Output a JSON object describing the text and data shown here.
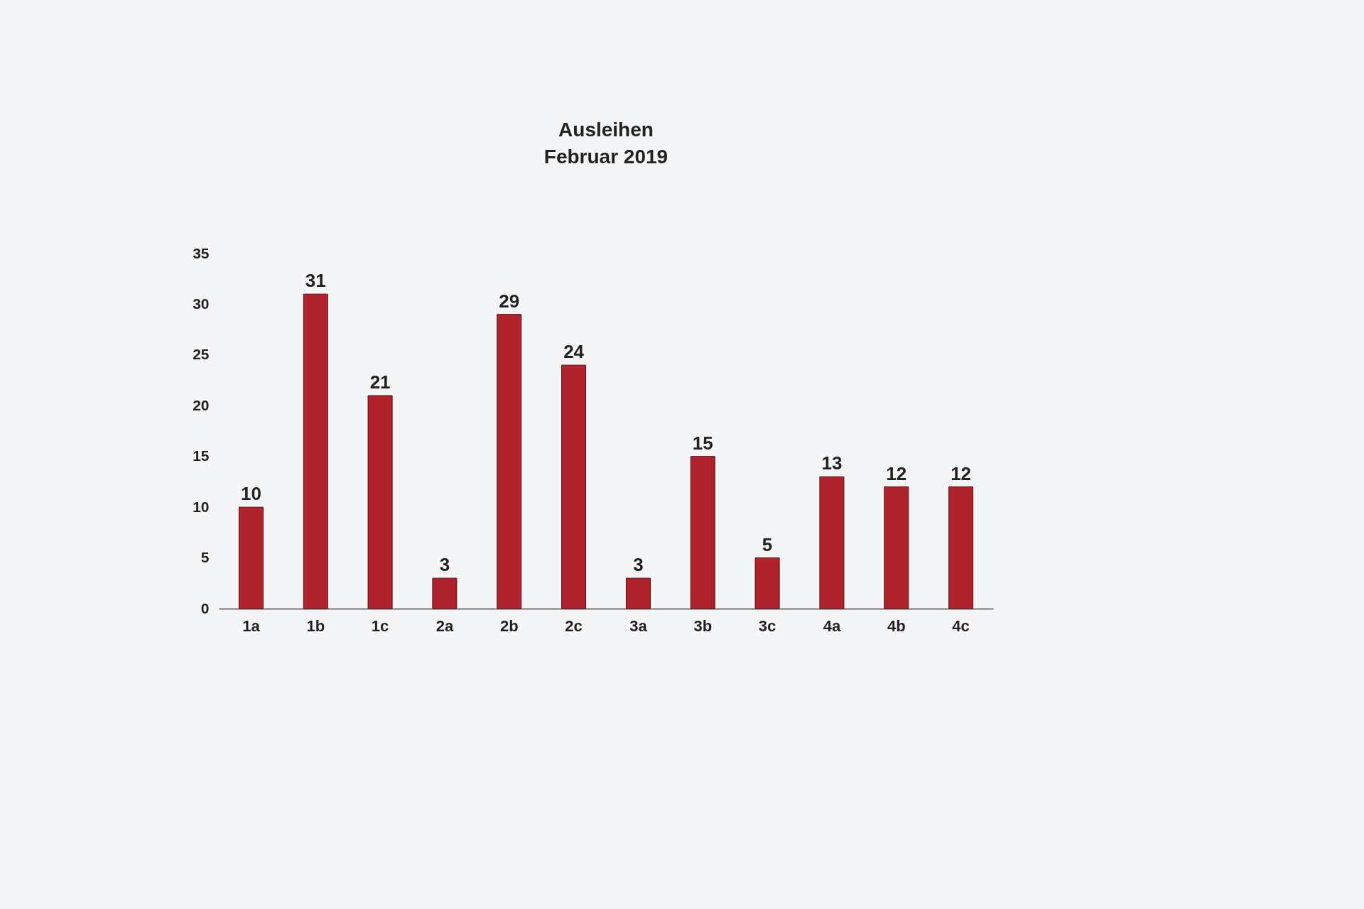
{
  "chart_data": {
    "type": "bar",
    "title": "Ausleihen",
    "subtitle": "Februar 2019",
    "categories": [
      "1a",
      "1b",
      "1c",
      "2a",
      "2b",
      "2c",
      "3a",
      "3b",
      "3c",
      "4a",
      "4b",
      "4c"
    ],
    "values": [
      10,
      31,
      21,
      3,
      29,
      24,
      3,
      15,
      5,
      13,
      12,
      12
    ],
    "color": "#b0222c",
    "ylim": [
      0,
      35
    ],
    "yticks": [
      0,
      5,
      10,
      15,
      20,
      25,
      30,
      35
    ],
    "data_labels": true,
    "grid": false
  }
}
